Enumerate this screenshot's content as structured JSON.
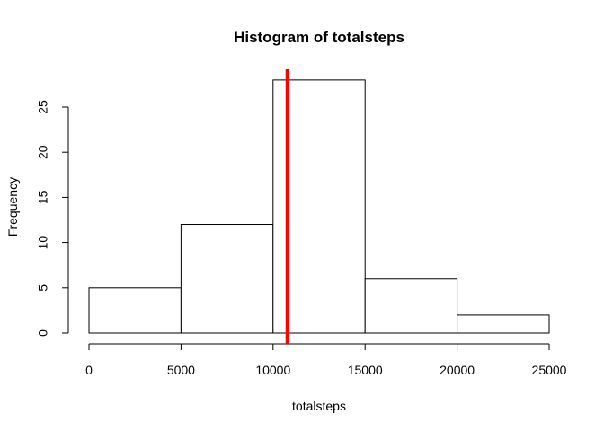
{
  "chart_data": {
    "type": "histogram",
    "title": "Histogram of totalsteps",
    "xlabel": "totalsteps",
    "ylabel": "Frequency",
    "bins": [
      {
        "start": 0,
        "end": 5000,
        "count": 5
      },
      {
        "start": 5000,
        "end": 10000,
        "count": 12
      },
      {
        "start": 10000,
        "end": 15000,
        "count": 28
      },
      {
        "start": 15000,
        "end": 20000,
        "count": 6
      },
      {
        "start": 20000,
        "end": 25000,
        "count": 2
      }
    ],
    "xlim": [
      0,
      25000
    ],
    "ylim": [
      0,
      28
    ],
    "x_ticks": [
      0,
      5000,
      10000,
      15000,
      20000,
      25000
    ],
    "x_tick_labels": [
      "0",
      "5000",
      "10000",
      "15000",
      "20000",
      "25000"
    ],
    "y_ticks": [
      0,
      5,
      10,
      15,
      20,
      25
    ],
    "y_tick_labels": [
      "0",
      "5",
      "10",
      "15",
      "20",
      "25"
    ],
    "reference_line": {
      "x": 10766,
      "color": "#ff0000"
    },
    "bar_fill": "#ffffff",
    "bar_stroke": "#000000",
    "grid": false,
    "legend": "none"
  }
}
